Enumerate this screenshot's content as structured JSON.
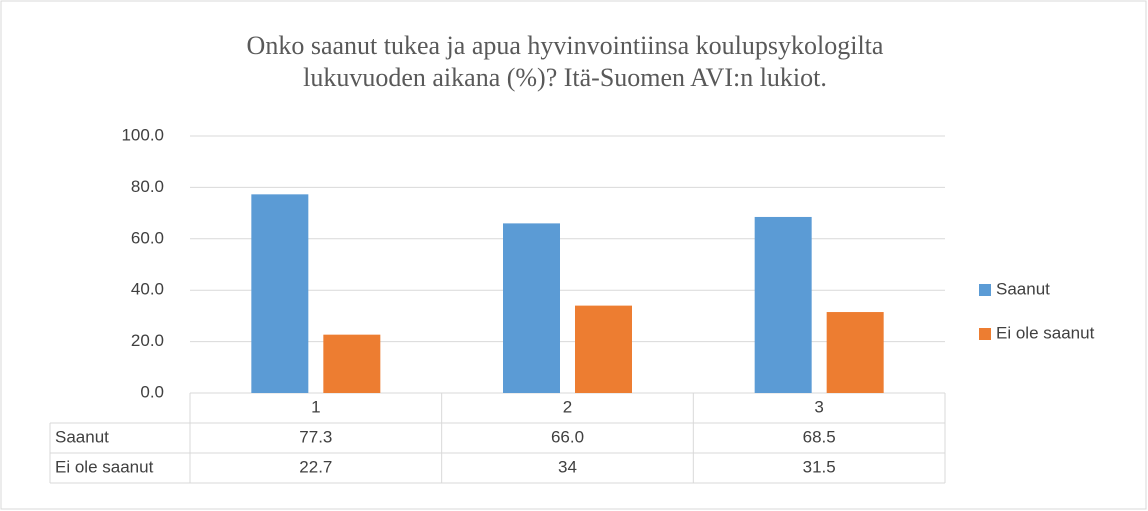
{
  "chart_data": {
    "type": "bar",
    "title": "Onko saanut tukea ja apua hyvinvointiinsa koulupsykologilta lukuvuoden aikana (%)? Itä-Suomen AVI:n lukiot.",
    "categories": [
      "1",
      "2",
      "3"
    ],
    "series": [
      {
        "name": "Saanut",
        "color": "#5b9bd5",
        "values": [
          77.3,
          66,
          68.5
        ],
        "value_labels": [
          "77.3",
          "66.0",
          "68.5"
        ]
      },
      {
        "name": "Ei ole saanut",
        "color": "#ed7d31",
        "values": [
          22.7,
          34,
          31.5
        ]
      }
    ],
    "ylim": [
      0,
      100
    ],
    "yticks": [
      {
        "value": 0,
        "label": "0.0"
      },
      {
        "value": 20,
        "label": "20.0"
      },
      {
        "value": 40,
        "label": "40.0"
      },
      {
        "value": 60,
        "label": "60.0"
      },
      {
        "value": 80,
        "label": "80.0"
      },
      {
        "value": 100,
        "label": "100.0"
      }
    ],
    "grid": true,
    "legend": "right",
    "data_table": true
  }
}
